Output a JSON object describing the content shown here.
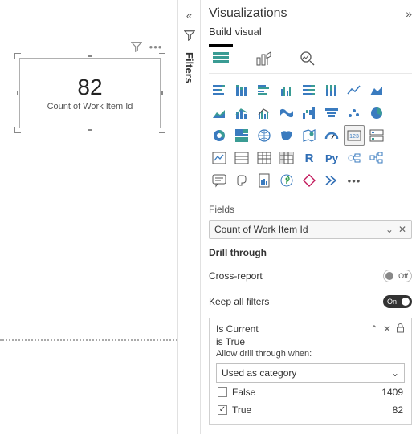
{
  "canvas": {
    "card_value": "82",
    "card_label": "Count of Work Item Id"
  },
  "filters_pane": {
    "label": "Filters"
  },
  "vis": {
    "title": "Visualizations",
    "subtitle": "Build visual",
    "fields_label": "Fields",
    "field_pill": "Count of Work Item Id",
    "drill_through": "Drill through",
    "cross_report": "Cross-report",
    "cross_report_state": "Off",
    "keep_all_filters": "Keep all filters",
    "keep_all_filters_state": "On",
    "dt_field": "Is Current",
    "dt_value": "is True",
    "dt_hint": "Allow drill through when:",
    "dt_dropdown": "Used as category",
    "dt_options": [
      {
        "label": "False",
        "count": "1409",
        "checked": false
      },
      {
        "label": "True",
        "count": "82",
        "checked": true
      }
    ]
  },
  "colors": {
    "icon_blue": "#3a7bbf",
    "icon_teal": "#3a9c94",
    "icon_gray": "#666666",
    "icon_dark": "#333333",
    "py_blue": "#2e6db5",
    "pink": "#c2185b"
  }
}
